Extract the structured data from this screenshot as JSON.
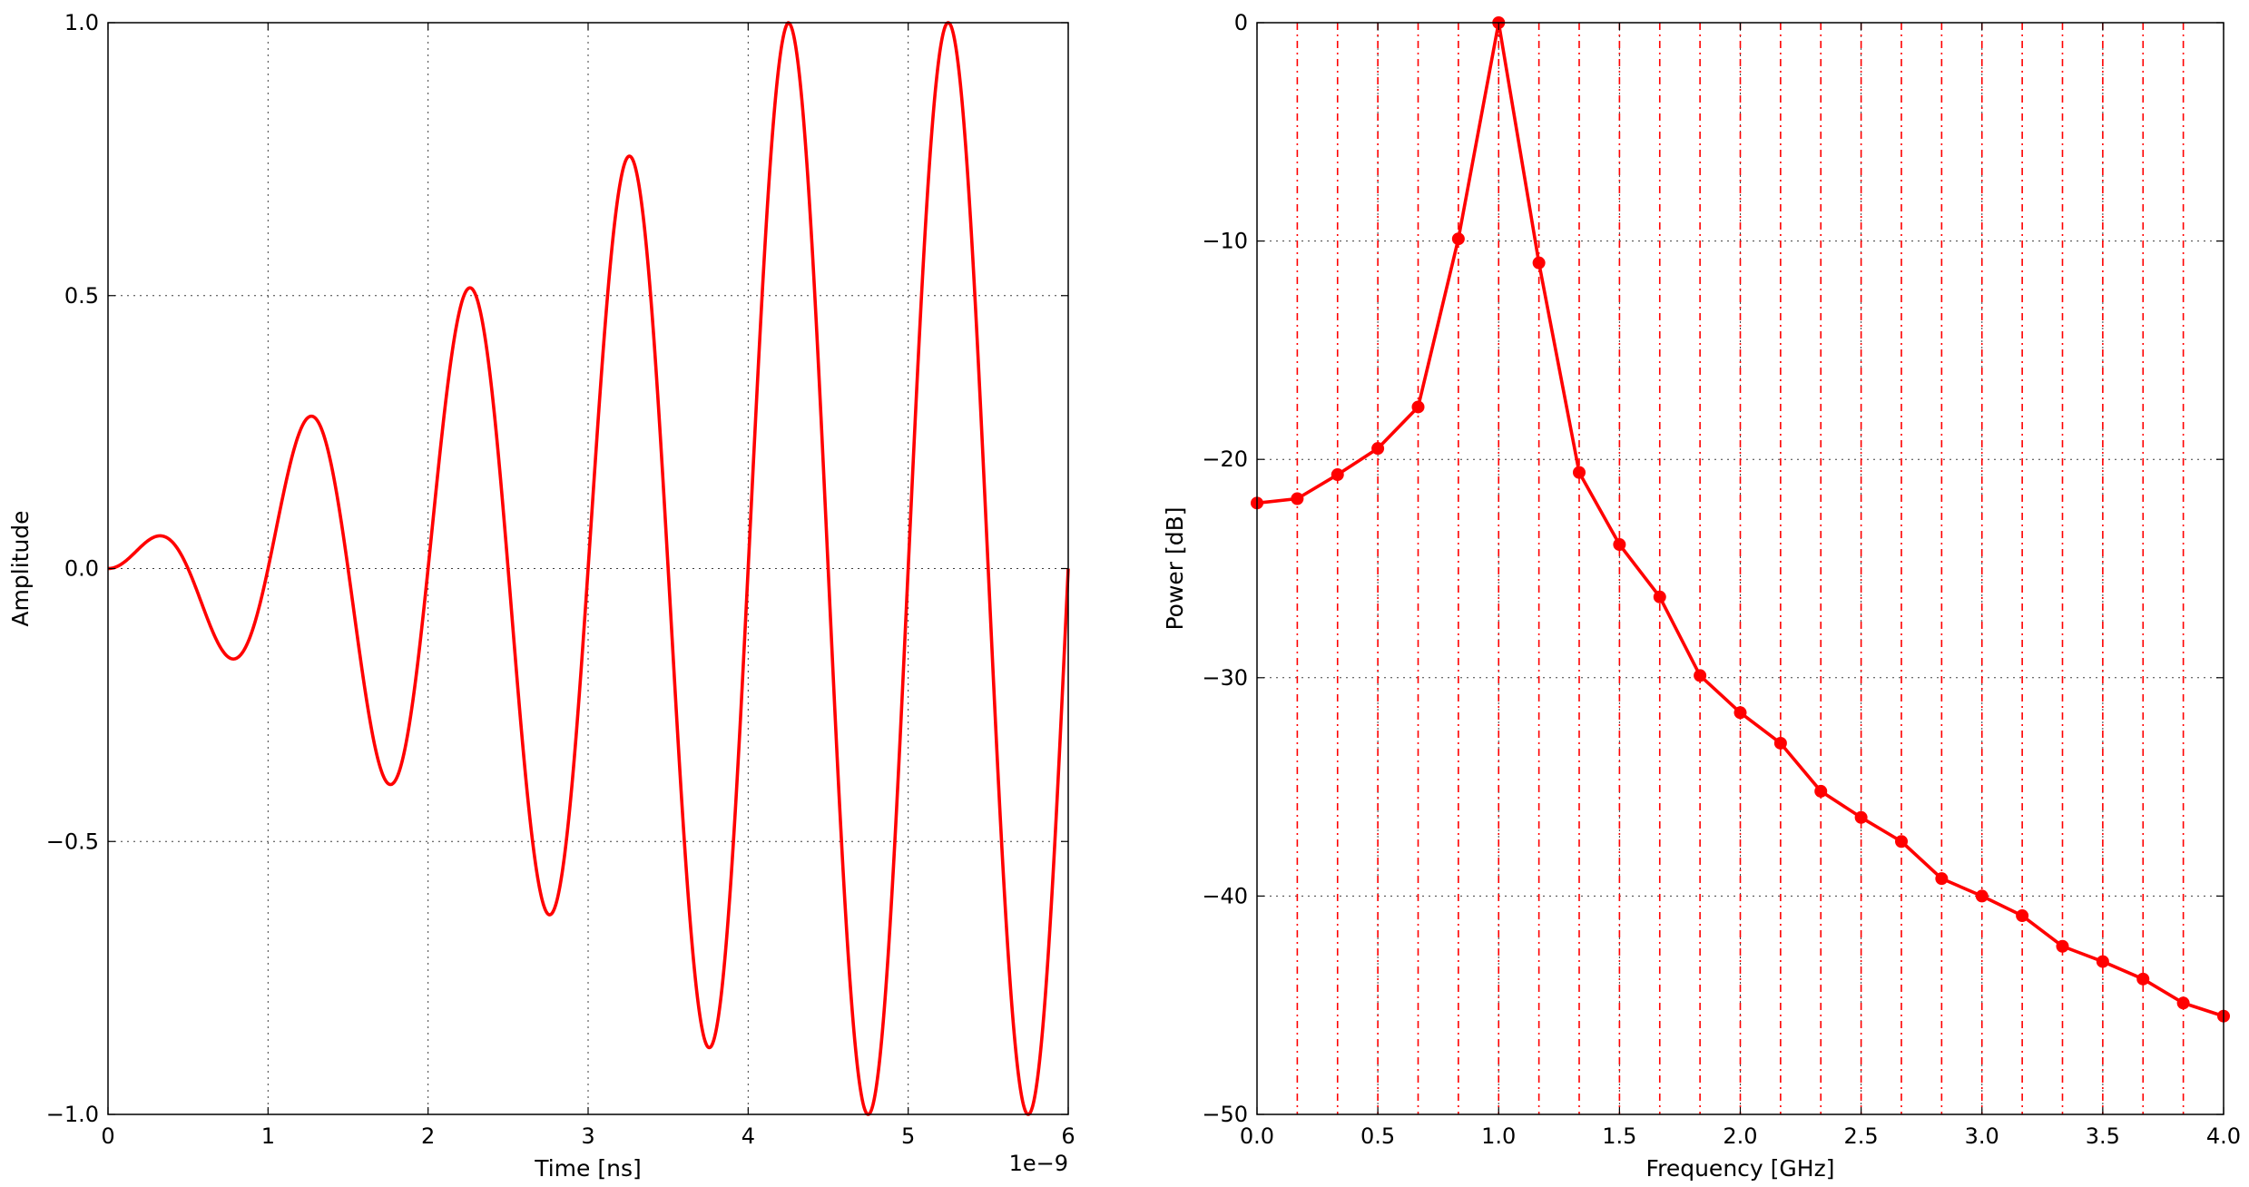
{
  "chart_data": [
    {
      "type": "line",
      "title": "",
      "xlabel": "Time [ns]",
      "ylabel": "Amplitude",
      "x_offset_label": "1e−9",
      "xlim": [
        0,
        6e-09
      ],
      "ylim": [
        -1.0,
        1.0
      ],
      "xticks": [
        0,
        1e-09,
        2e-09,
        3e-09,
        4e-09,
        5e-09,
        6e-09
      ],
      "xtick_labels": [
        "0",
        "1",
        "2",
        "3",
        "4",
        "5",
        "6"
      ],
      "yticks": [
        -1.0,
        -0.5,
        0.0,
        0.5,
        1.0
      ],
      "ytick_labels": [
        "−1.0",
        "−0.5",
        "0.0",
        "0.5",
        "1.0"
      ],
      "grid": true,
      "series": [
        {
          "color": "#ff0000",
          "description": "chirp-like sinusoid, frequency 1 GHz, amplitude growing with time",
          "x": [
            0,
            3.2e-10,
            7.8e-10,
            1.27e-09,
            1.76e-09,
            2.26e-09,
            2.75e-09,
            3.26e-09,
            3.75e-09,
            4.25e-09,
            4.75e-09,
            5.25e-09,
            5.75e-09,
            6e-09
          ],
          "y": [
            0.0,
            0.07,
            -0.19,
            0.315,
            -0.44,
            0.565,
            -0.69,
            0.81,
            -0.94,
            1.0,
            -1.0,
            1.0,
            -1.0,
            0.0
          ]
        }
      ]
    },
    {
      "type": "line",
      "title": "",
      "xlabel": "Frequency [GHz]",
      "ylabel": "Power [dB]",
      "xlim": [
        0.0,
        4.0
      ],
      "ylim": [
        -50,
        0
      ],
      "xticks": [
        0.0,
        0.5,
        1.0,
        1.5,
        2.0,
        2.5,
        3.0,
        3.5,
        4.0
      ],
      "xtick_labels": [
        "0.0",
        "0.5",
        "1.0",
        "1.5",
        "2.0",
        "2.5",
        "3.0",
        "3.5",
        "4.0"
      ],
      "yticks": [
        -50,
        -40,
        -30,
        -20,
        -10,
        0
      ],
      "ytick_labels": [
        "−50",
        "−40",
        "−30",
        "−20",
        "−10",
        "0"
      ],
      "grid": true,
      "vertical_lines": "dash-dot red lines at each sample frequency",
      "series": [
        {
          "color": "#ff0000",
          "marker": "circle",
          "x": [
            0.0,
            0.1667,
            0.3333,
            0.5,
            0.6667,
            0.8333,
            1.0,
            1.1667,
            1.3333,
            1.5,
            1.6667,
            1.8333,
            2.0,
            2.1667,
            2.3333,
            2.5,
            2.6667,
            2.8333,
            3.0,
            3.1667,
            3.3333,
            3.5,
            3.6667,
            3.8333,
            4.0
          ],
          "y": [
            -22.0,
            -21.8,
            -20.7,
            -19.5,
            -17.6,
            -9.9,
            0.0,
            -11.0,
            -20.6,
            -23.9,
            -26.3,
            -29.9,
            -31.6,
            -33.0,
            -35.2,
            -36.4,
            -37.5,
            -39.2,
            -40.0,
            -40.9,
            -42.3,
            -43.0,
            -43.8,
            -44.9,
            -45.5
          ]
        }
      ]
    }
  ]
}
